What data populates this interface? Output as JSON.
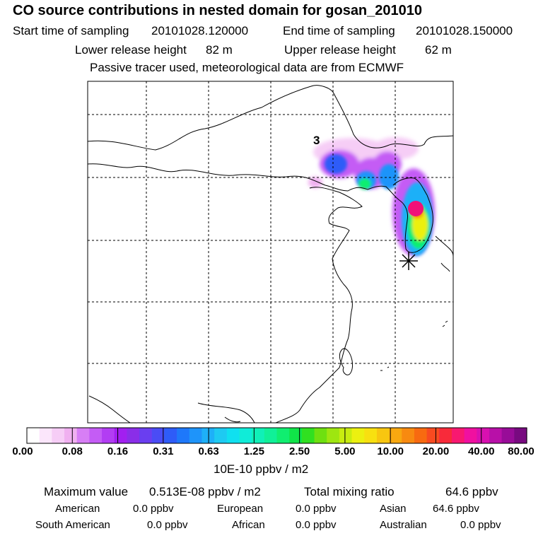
{
  "title": "CO  source contributions in nested domain for gosan_201010",
  "header": {
    "start_label": "Start time of sampling",
    "start_value": "20101028.120000",
    "end_label": "End time of sampling",
    "end_value": "20101028.150000",
    "lower_label": "Lower release height",
    "lower_value": "82 m",
    "upper_label": "Upper release height",
    "upper_value": "62 m",
    "note": "Passive tracer used, meteorological data are from ECMWF"
  },
  "map": {
    "marker_label": "3",
    "receptor_symbol": "asterisk"
  },
  "colorbar": {
    "tick_labels": [
      "0.00",
      "0.08",
      "0.16",
      "0.31",
      "0.63",
      "1.25",
      "2.50",
      "5.00",
      "10.00",
      "20.00",
      "40.00",
      "80.00"
    ],
    "unit_label": "10E-10 ppbv / m2",
    "colors": [
      "#ffffff",
      "#fbe6fb",
      "#f6cdf6",
      "#f0b0f0",
      "#d77ef5",
      "#c45cf5",
      "#b23df3",
      "#a21ff0",
      "#8a2ee8",
      "#6a3ef0",
      "#4a4cf5",
      "#2e5cf8",
      "#1e78fa",
      "#1e94fa",
      "#1eb0f8",
      "#1ecaf2",
      "#10e0f0",
      "#10ecd8",
      "#10f0b8",
      "#10f098",
      "#10ee70",
      "#10e448",
      "#30e020",
      "#6ee010",
      "#9ee610",
      "#c8ec10",
      "#ecf010",
      "#f8e010",
      "#f8c610",
      "#f8a810",
      "#f88a10",
      "#f86a10",
      "#f84a20",
      "#f82a3a",
      "#f81870",
      "#f010a0",
      "#d810b0",
      "#b810a8",
      "#980c98",
      "#780a80"
    ]
  },
  "summary": {
    "max_label": "Maximum value",
    "max_value": "0.513E-08 ppbv / m2",
    "total_label": "Total mixing ratio",
    "total_value": "64.6 ppbv",
    "regions": [
      {
        "name": "American",
        "value": "0.0 ppbv"
      },
      {
        "name": "European",
        "value": "0.0 ppbv"
      },
      {
        "name": "Asian",
        "value": "64.6 ppbv"
      },
      {
        "name": "South American",
        "value": "0.0 ppbv"
      },
      {
        "name": "African",
        "value": "0.0 ppbv"
      },
      {
        "name": "Australian",
        "value": "0.0 ppbv"
      }
    ]
  }
}
